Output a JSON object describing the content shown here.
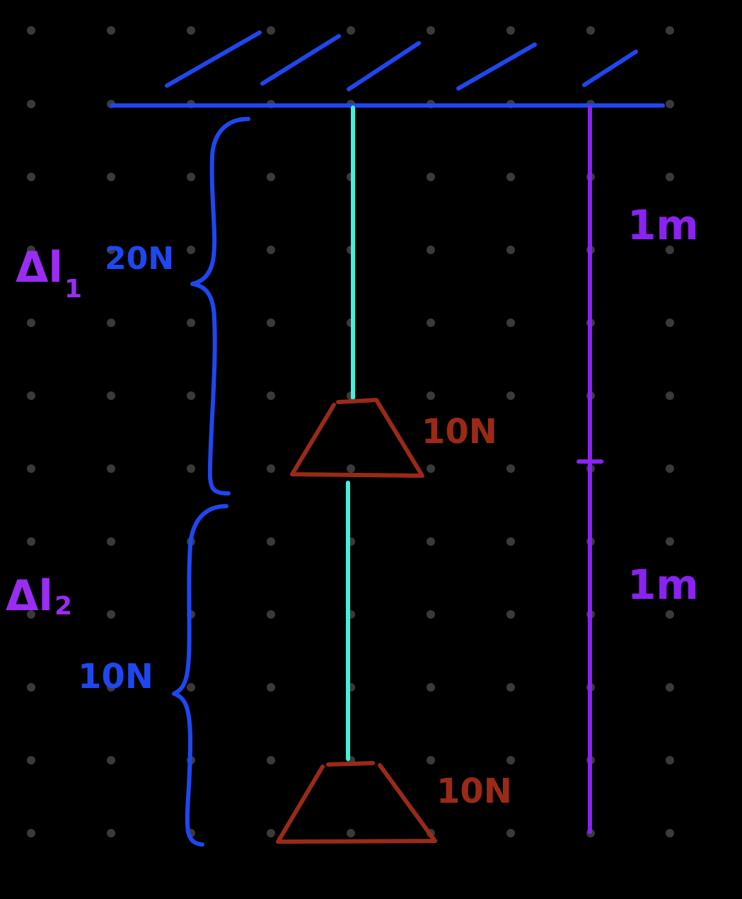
{
  "colors": {
    "background": "#000000",
    "dots": "#3a3a3a",
    "ceiling": "#1f47f0",
    "brace": "#1f47f0",
    "string": "#45f0d9",
    "weight": "#9a2a17",
    "ruler": "#8a22f2",
    "delta_label": "#9a2cf3"
  },
  "labels": {
    "delta_l1": "Δl",
    "delta_l1_sub": "1",
    "delta_l2": "Δl",
    "delta_l2_sub": "2",
    "force_upper_section": "20N",
    "force_lower_section": "10N",
    "upper_weight": "10N",
    "lower_weight": "10N",
    "length_upper": "1m",
    "length_lower": "1m"
  }
}
